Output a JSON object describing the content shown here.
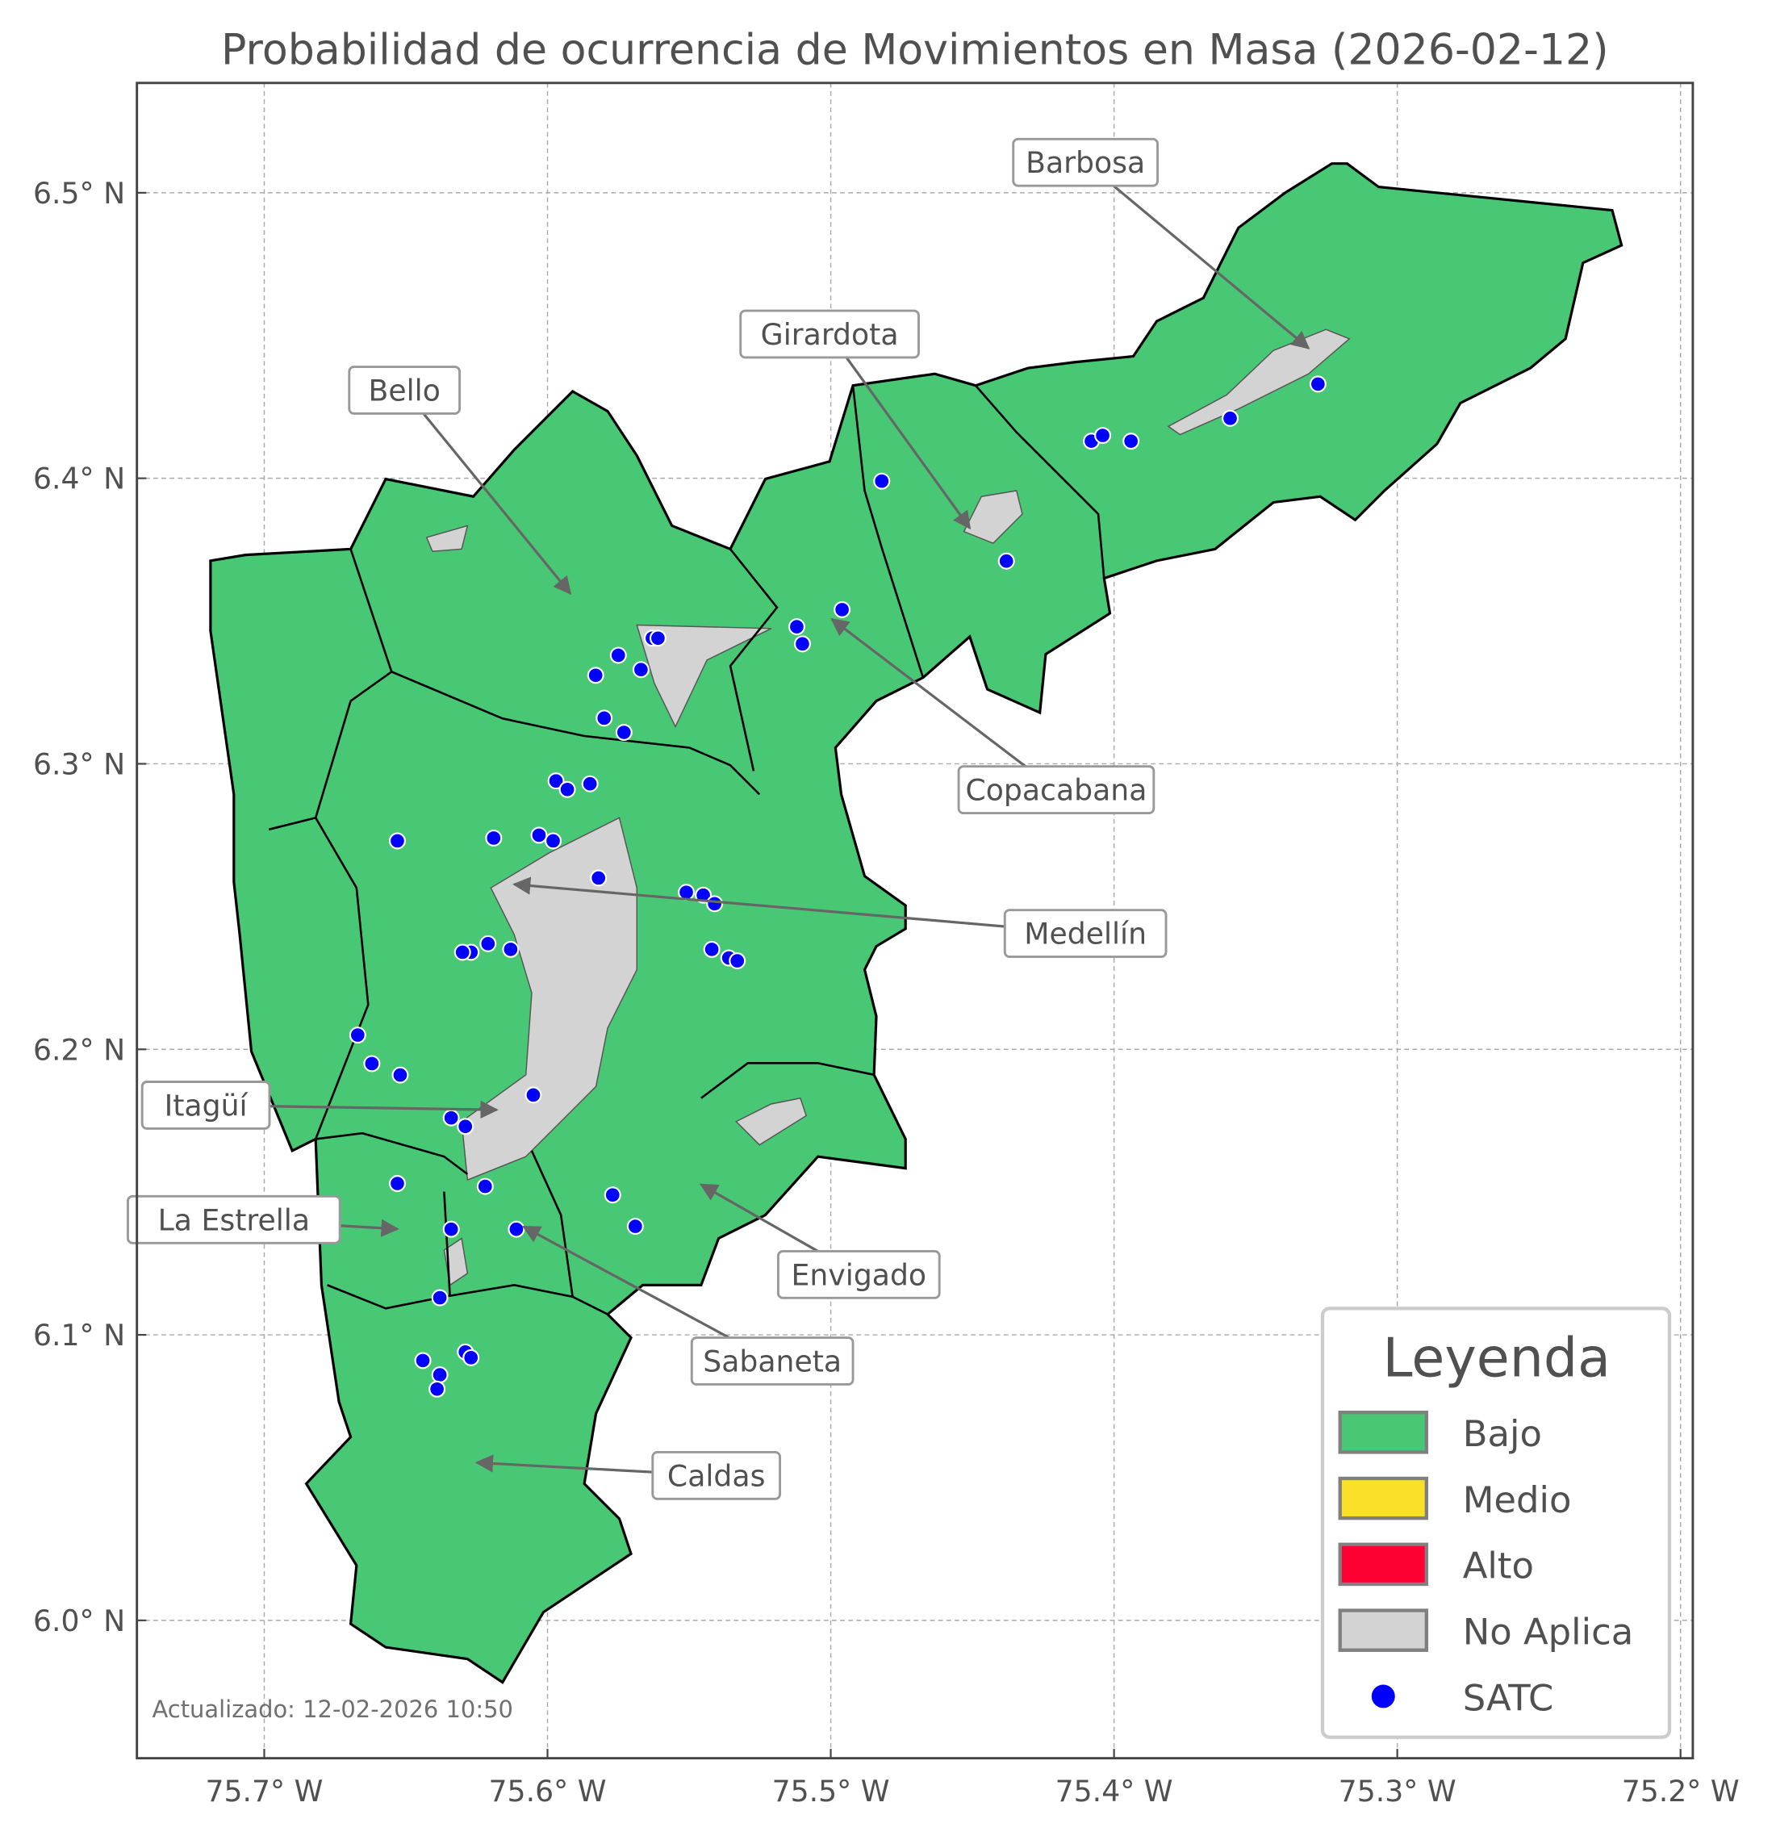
{
  "title": "Probabilidad de ocurrencia de Movimientos en Masa (2026-02-12)",
  "footer": "Actualizado: 12-02-2026 10:50",
  "axes": {
    "x_ticks": [
      {
        "value": -75.7,
        "label": "75.7° W"
      },
      {
        "value": -75.6,
        "label": "75.6° W"
      },
      {
        "value": -75.5,
        "label": "75.5° W"
      },
      {
        "value": -75.4,
        "label": "75.4° W"
      },
      {
        "value": -75.3,
        "label": "75.3° W"
      },
      {
        "value": -75.2,
        "label": "75.2° W"
      }
    ],
    "y_ticks": [
      {
        "value": 6.5,
        "label": "6.5° N"
      },
      {
        "value": 6.4,
        "label": "6.4° N"
      },
      {
        "value": 6.3,
        "label": "6.3° N"
      },
      {
        "value": 6.2,
        "label": "6.2° N"
      },
      {
        "value": 6.1,
        "label": "6.1° N"
      },
      {
        "value": 6.0,
        "label": "6.0° N"
      }
    ],
    "xlim": [
      -75.745,
      -75.196
    ],
    "ylim": [
      5.955,
      6.542
    ],
    "grid": true
  },
  "colors": {
    "bajo": "#48c774",
    "medio": "#fbe02a",
    "alto": "#ff0033",
    "no_aplica": "#d3d3d3",
    "satc": "#0000ff"
  },
  "legend": {
    "title": "Leyenda",
    "placement": "bottom-right",
    "items": [
      {
        "label": "Bajo",
        "color": "#48c774",
        "kind": "patch"
      },
      {
        "label": "Medio",
        "color": "#fbe02a",
        "kind": "patch"
      },
      {
        "label": "Alto",
        "color": "#ff0033",
        "kind": "patch"
      },
      {
        "label": "No Aplica",
        "color": "#d3d3d3",
        "kind": "patch"
      },
      {
        "label": "SATC",
        "color": "#0000ff",
        "kind": "point"
      }
    ]
  },
  "municipalities": [
    {
      "name": "Barbosa",
      "risk": "Bajo"
    },
    {
      "name": "Girardota",
      "risk": "Bajo"
    },
    {
      "name": "Bello",
      "risk": "Bajo"
    },
    {
      "name": "Copacabana",
      "risk": "Bajo"
    },
    {
      "name": "Medellín",
      "risk": "Bajo"
    },
    {
      "name": "Itagüí",
      "risk": "Bajo"
    },
    {
      "name": "La Estrella",
      "risk": "Bajo"
    },
    {
      "name": "Envigado",
      "risk": "Bajo"
    },
    {
      "name": "Sabaneta",
      "risk": "Bajo"
    },
    {
      "name": "Caldas",
      "risk": "Bajo"
    }
  ],
  "satc_points": [
    [
      -75.482,
      6.399
    ],
    [
      -75.408,
      6.413
    ],
    [
      -75.404,
      6.415
    ],
    [
      -75.394,
      6.413
    ],
    [
      -75.359,
      6.421
    ],
    [
      -75.328,
      6.433
    ],
    [
      -75.438,
      6.371
    ],
    [
      -75.496,
      6.354
    ],
    [
      -75.512,
      6.348
    ],
    [
      -75.51,
      6.342
    ],
    [
      -75.563,
      6.344
    ],
    [
      -75.561,
      6.344
    ],
    [
      -75.575,
      6.338
    ],
    [
      -75.583,
      6.331
    ],
    [
      -75.567,
      6.333
    ],
    [
      -75.58,
      6.316
    ],
    [
      -75.573,
      6.311
    ],
    [
      -75.597,
      6.294
    ],
    [
      -75.593,
      6.291
    ],
    [
      -75.585,
      6.293
    ],
    [
      -75.653,
      6.273
    ],
    [
      -75.619,
      6.274
    ],
    [
      -75.603,
      6.275
    ],
    [
      -75.598,
      6.273
    ],
    [
      -75.582,
      6.26
    ],
    [
      -75.551,
      6.255
    ],
    [
      -75.545,
      6.254
    ],
    [
      -75.541,
      6.251
    ],
    [
      -75.542,
      6.235
    ],
    [
      -75.536,
      6.232
    ],
    [
      -75.533,
      6.231
    ],
    [
      -75.621,
      6.237
    ],
    [
      -75.627,
      6.234
    ],
    [
      -75.63,
      6.234
    ],
    [
      -75.613,
      6.235
    ],
    [
      -75.667,
      6.205
    ],
    [
      -75.662,
      6.195
    ],
    [
      -75.652,
      6.191
    ],
    [
      -75.605,
      6.184
    ],
    [
      -75.634,
      6.176
    ],
    [
      -75.629,
      6.173
    ],
    [
      -75.653,
      6.153
    ],
    [
      -75.622,
      6.152
    ],
    [
      -75.577,
      6.149
    ],
    [
      -75.569,
      6.138
    ],
    [
      -75.611,
      6.137
    ],
    [
      -75.634,
      6.137
    ],
    [
      -75.638,
      6.113
    ],
    [
      -75.644,
      6.091
    ],
    [
      -75.629,
      6.094
    ],
    [
      -75.627,
      6.092
    ],
    [
      -75.638,
      6.086
    ],
    [
      -75.639,
      6.081
    ]
  ]
}
